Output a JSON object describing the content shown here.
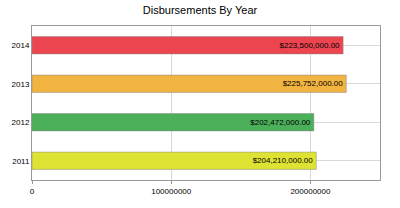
{
  "chart_data": {
    "type": "bar",
    "orientation": "horizontal",
    "title": "Disbursements By Year",
    "categories": [
      "2011",
      "2012",
      "2013",
      "2014"
    ],
    "values": [
      204210000,
      202472000,
      225752000,
      223500000
    ],
    "value_labels": [
      "$204,210,000.00",
      "$202,472,000.00",
      "$225,752,000.00",
      "$223,500,000.00"
    ],
    "colors": [
      "#dde233",
      "#4caf5a",
      "#f2b441",
      "#ec4550"
    ],
    "data_labels": true,
    "xlim": [
      0,
      250000000
    ],
    "xticks": [
      0,
      100000000,
      200000000
    ],
    "grid": true
  }
}
